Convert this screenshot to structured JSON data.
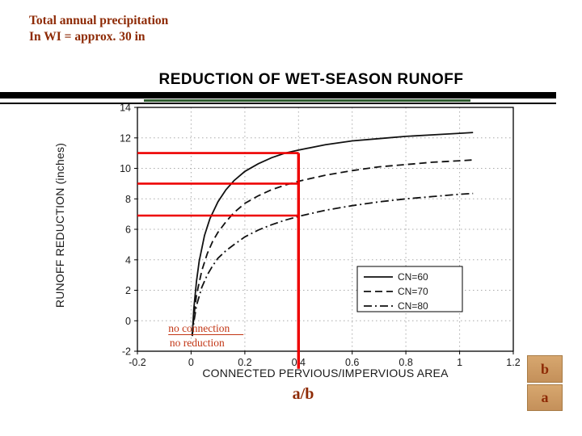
{
  "slide": {
    "note": [
      "Total annual precipitation",
      "In WI = approx. 30 in"
    ],
    "title": "REDUCTION OF WET-SEASON RUNOFF",
    "caption": "a/b",
    "ratio_boxes": {
      "top": "b",
      "bottom": "a"
    }
  },
  "colors": {
    "maroon_text": "#8E2A05",
    "annotation_text": "#C23514",
    "annotation_line": "#EE0000",
    "curve": "#111111",
    "axis_text": "#1A1A1A",
    "box_fill": "#CD9B63",
    "grid": "#AAAAAA"
  },
  "chart_data": {
    "type": "line",
    "title": "REDUCTION OF WET-SEASON RUNOFF",
    "xlabel": "CONNECTED PERVIOUS/IMPERVIOUS AREA",
    "ylabel": "RUNOFF REDUCTION (inches)",
    "xlim": [
      -0.2,
      1.2
    ],
    "ylim": [
      -2,
      14
    ],
    "grid": true,
    "xticks": [
      {
        "v": -0.2,
        "label": "-0.2"
      },
      {
        "v": 0,
        "label": "0"
      },
      {
        "v": 0.2,
        "label": "0.2"
      },
      {
        "v": 0.4,
        "label": "0.4"
      },
      {
        "v": 0.6,
        "label": "0.6"
      },
      {
        "v": 0.8,
        "label": "0.8"
      },
      {
        "v": 1,
        "label": "1"
      },
      {
        "v": 1.2,
        "label": "1.2"
      }
    ],
    "yticks": [
      {
        "v": -2,
        "label": "-2"
      },
      {
        "v": 0,
        "label": "0"
      },
      {
        "v": 2,
        "label": "2"
      },
      {
        "v": 4,
        "label": "4"
      },
      {
        "v": 6,
        "label": "6"
      },
      {
        "v": 8,
        "label": "8"
      },
      {
        "v": 10,
        "label": "10"
      },
      {
        "v": 12,
        "label": "12"
      },
      {
        "v": 14,
        "label": "14"
      }
    ],
    "legend": {
      "position": "inside-lower-right"
    },
    "series": [
      {
        "name": "CN=60",
        "style": "solid",
        "points": [
          [
            0.004,
            -1
          ],
          [
            0.01,
            0.8
          ],
          [
            0.02,
            2.6
          ],
          [
            0.03,
            3.9
          ],
          [
            0.05,
            5.6
          ],
          [
            0.07,
            6.7
          ],
          [
            0.1,
            7.8
          ],
          [
            0.13,
            8.6
          ],
          [
            0.16,
            9.2
          ],
          [
            0.2,
            9.8
          ],
          [
            0.25,
            10.3
          ],
          [
            0.3,
            10.7
          ],
          [
            0.35,
            11.0
          ],
          [
            0.4,
            11.2
          ],
          [
            0.5,
            11.55
          ],
          [
            0.6,
            11.8
          ],
          [
            0.7,
            11.95
          ],
          [
            0.8,
            12.1
          ],
          [
            0.9,
            12.2
          ],
          [
            1.0,
            12.3
          ],
          [
            1.05,
            12.35
          ]
        ]
      },
      {
        "name": "CN=70",
        "style": "dashed",
        "points": [
          [
            0.004,
            -1
          ],
          [
            0.01,
            0.3
          ],
          [
            0.02,
            1.7
          ],
          [
            0.04,
            3.3
          ],
          [
            0.06,
            4.4
          ],
          [
            0.08,
            5.2
          ],
          [
            0.1,
            5.8
          ],
          [
            0.13,
            6.5
          ],
          [
            0.16,
            7.1
          ],
          [
            0.2,
            7.7
          ],
          [
            0.25,
            8.2
          ],
          [
            0.3,
            8.6
          ],
          [
            0.35,
            8.9
          ],
          [
            0.4,
            9.15
          ],
          [
            0.5,
            9.55
          ],
          [
            0.6,
            9.85
          ],
          [
            0.7,
            10.1
          ],
          [
            0.8,
            10.25
          ],
          [
            0.9,
            10.4
          ],
          [
            1.0,
            10.5
          ],
          [
            1.05,
            10.55
          ]
        ]
      },
      {
        "name": "CN=80",
        "style": "dashdot",
        "points": [
          [
            0.004,
            -1
          ],
          [
            0.01,
            -0.1
          ],
          [
            0.02,
            1.0
          ],
          [
            0.04,
            2.2
          ],
          [
            0.06,
            3.0
          ],
          [
            0.08,
            3.6
          ],
          [
            0.1,
            4.1
          ],
          [
            0.13,
            4.6
          ],
          [
            0.16,
            5.0
          ],
          [
            0.2,
            5.5
          ],
          [
            0.25,
            5.95
          ],
          [
            0.3,
            6.3
          ],
          [
            0.35,
            6.6
          ],
          [
            0.4,
            6.85
          ],
          [
            0.5,
            7.25
          ],
          [
            0.6,
            7.55
          ],
          [
            0.7,
            7.8
          ],
          [
            0.8,
            8.0
          ],
          [
            0.9,
            8.15
          ],
          [
            1.0,
            8.3
          ],
          [
            1.05,
            8.35
          ]
        ]
      }
    ],
    "annotations": {
      "h_lines": [
        {
          "y": 11.0,
          "x0": -0.2,
          "x1": 0.4
        },
        {
          "y": 9.0,
          "x0": -0.2,
          "x1": 0.4
        },
        {
          "y": 6.9,
          "x0": -0.2,
          "x1": 0.4
        }
      ],
      "v_line": {
        "x": 0.4,
        "y0": -3.15,
        "y1": 11.0
      },
      "labels": [
        {
          "text": "no connection",
          "x": -0.085,
          "y": -0.73,
          "underline": true
        },
        {
          "text": "no reduction",
          "x": -0.08,
          "y": -1.68,
          "underline": false
        }
      ]
    }
  }
}
